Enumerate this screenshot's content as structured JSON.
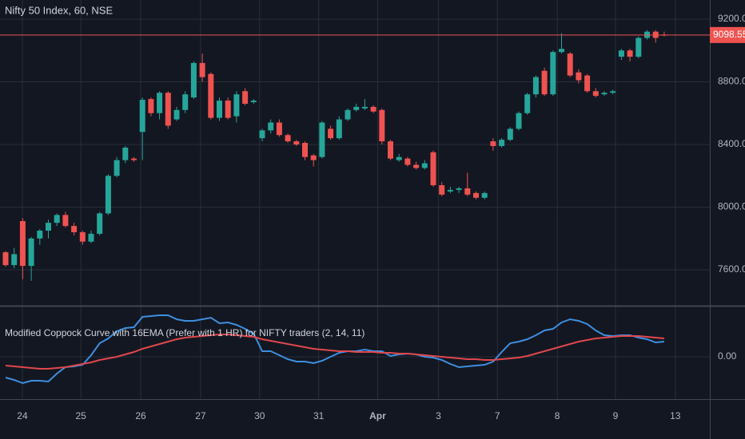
{
  "chart_data": [
    {
      "type": "candlestick",
      "title": "Nifty 50 Index, 60, NSE",
      "up_color": "#26a69a",
      "down_color": "#ef5350",
      "ohlc": [
        [
          7712,
          7720,
          7620,
          7630
        ],
        [
          7630,
          7740,
          7610,
          7700
        ],
        [
          7911,
          7930,
          7540,
          7625
        ],
        [
          7625,
          7810,
          7530,
          7800
        ],
        [
          7800,
          7860,
          7760,
          7850
        ],
        [
          7850,
          7920,
          7800,
          7900
        ],
        [
          7900,
          7960,
          7880,
          7950
        ],
        [
          7950,
          7970,
          7870,
          7880
        ],
        [
          7880,
          7900,
          7820,
          7840
        ],
        [
          7840,
          7850,
          7760,
          7780
        ],
        [
          7780,
          7850,
          7770,
          7830
        ],
        [
          7830,
          7970,
          7820,
          7960
        ],
        [
          7960,
          8210,
          7950,
          8200
        ],
        [
          8200,
          8320,
          8190,
          8300
        ],
        [
          8300,
          8390,
          8280,
          8380
        ],
        [
          8310,
          8320,
          8290,
          8300
        ],
        [
          8480,
          8700,
          8300,
          8685
        ],
        [
          8690,
          8700,
          8580,
          8600
        ],
        [
          8600,
          8740,
          8560,
          8730
        ],
        [
          8730,
          8740,
          8500,
          8520
        ],
        [
          8560,
          8640,
          8550,
          8620
        ],
        [
          8620,
          8740,
          8600,
          8720
        ],
        [
          8700,
          8930,
          8690,
          8920
        ],
        [
          8920,
          8980,
          8800,
          8830
        ],
        [
          8850,
          8860,
          8560,
          8570
        ],
        [
          8570,
          8700,
          8550,
          8680
        ],
        [
          8680,
          8700,
          8560,
          8570
        ],
        [
          8580,
          8740,
          8540,
          8720
        ],
        [
          8740,
          8760,
          8650,
          8660
        ],
        [
          8670,
          8690,
          8660,
          8680
        ],
        [
          8440,
          8500,
          8420,
          8490
        ],
        [
          8490,
          8560,
          8470,
          8540
        ],
        [
          8540,
          8560,
          8450,
          8460
        ],
        [
          8460,
          8470,
          8410,
          8420
        ],
        [
          8420,
          8430,
          8390,
          8400
        ],
        [
          8410,
          8420,
          8300,
          8320
        ],
        [
          8330,
          8340,
          8260,
          8300
        ],
        [
          8320,
          8550,
          8310,
          8540
        ],
        [
          8500,
          8520,
          8430,
          8440
        ],
        [
          8440,
          8580,
          8430,
          8560
        ],
        [
          8560,
          8630,
          8550,
          8620
        ],
        [
          8620,
          8660,
          8610,
          8640
        ],
        [
          8630,
          8690,
          8620,
          8640
        ],
        [
          8640,
          8650,
          8600,
          8610
        ],
        [
          8620,
          8630,
          8400,
          8420
        ],
        [
          8420,
          8430,
          8300,
          8310
        ],
        [
          8300,
          8340,
          8290,
          8320
        ],
        [
          8310,
          8320,
          8260,
          8270
        ],
        [
          8270,
          8290,
          8240,
          8250
        ],
        [
          8250,
          8300,
          8240,
          8280
        ],
        [
          8350,
          8360,
          8130,
          8140
        ],
        [
          8140,
          8160,
          8070,
          8080
        ],
        [
          8100,
          8130,
          8090,
          8110
        ],
        [
          8110,
          8130,
          8090,
          8120
        ],
        [
          8120,
          8220,
          8070,
          8080
        ],
        [
          8090,
          8100,
          8050,
          8060
        ],
        [
          8060,
          8100,
          8050,
          8090
        ],
        [
          8420,
          8440,
          8360,
          8390
        ],
        [
          8390,
          8440,
          8380,
          8430
        ],
        [
          8430,
          8510,
          8420,
          8500
        ],
        [
          8500,
          8610,
          8490,
          8600
        ],
        [
          8600,
          8730,
          8590,
          8720
        ],
        [
          8720,
          8840,
          8700,
          8830
        ],
        [
          8870,
          8890,
          8710,
          8720
        ],
        [
          8720,
          9000,
          8710,
          8990
        ],
        [
          8990,
          9110,
          8980,
          9010
        ],
        [
          8980,
          8990,
          8830,
          8840
        ],
        [
          8860,
          8880,
          8790,
          8810
        ],
        [
          8840,
          8850,
          8730,
          8740
        ],
        [
          8740,
          8760,
          8700,
          8710
        ],
        [
          8720,
          8740,
          8710,
          8730
        ],
        [
          8730,
          8750,
          8720,
          8740
        ],
        [
          8960,
          9010,
          8940,
          9000
        ],
        [
          9000,
          9010,
          8930,
          8960
        ],
        [
          8960,
          9090,
          8950,
          9080
        ],
        [
          9080,
          9130,
          9070,
          9120
        ],
        [
          9120,
          9130,
          9050,
          9080
        ],
        [
          9100,
          9120,
          9090,
          9098.55
        ]
      ],
      "ylim": [
        7371,
        9322
      ],
      "yticks": [
        {
          "value": 7600,
          "label": "7600.00"
        },
        {
          "value": 8000,
          "label": "8000.00"
        },
        {
          "value": 8400,
          "label": "8400.00"
        },
        {
          "value": 8800,
          "label": "8800.00"
        },
        {
          "value": 9200,
          "label": "9200.00"
        }
      ],
      "last_price": 9098.55,
      "last_price_color": "#ef5350",
      "xticks": [
        {
          "value": 1.96,
          "label": "24"
        },
        {
          "value": 8.8,
          "label": "25"
        },
        {
          "value": 15.8,
          "label": "26"
        },
        {
          "value": 22.8,
          "label": "27"
        },
        {
          "value": 29.7,
          "label": "30"
        },
        {
          "value": 36.6,
          "label": "31"
        },
        {
          "value": 43.5,
          "label": "Apr"
        },
        {
          "value": 50.6,
          "label": "3"
        },
        {
          "value": 57.5,
          "label": "7"
        },
        {
          "value": 64.5,
          "label": "8"
        },
        {
          "value": 71.3,
          "label": "9"
        },
        {
          "value": 78.3,
          "label": "13"
        }
      ],
      "grid": true
    },
    {
      "type": "line",
      "title": "Modified Coppock Curve with 16EMA (Prefer with 1 HR) for NIFTY traders (2, 14, 11)",
      "series": [
        {
          "color": "#3d8fe0",
          "values": [
            -26,
            -29,
            -33,
            -30,
            -30,
            -31,
            -21,
            -13,
            -12,
            -10,
            2,
            17,
            23,
            32,
            36,
            37,
            50,
            51,
            52,
            52,
            47,
            45,
            45,
            47,
            49,
            42,
            43,
            40,
            35,
            29,
            7,
            7,
            2,
            -3,
            -6,
            -6,
            -8,
            -5,
            0,
            5,
            7,
            7,
            9,
            7,
            7,
            1,
            3,
            4,
            3,
            0,
            -1,
            -4,
            -9,
            -13,
            -12,
            -11,
            -10,
            -6,
            6,
            17,
            19,
            22,
            27,
            33,
            35,
            43,
            47,
            45,
            41,
            33,
            27,
            26,
            27,
            27,
            24,
            22,
            18,
            19
          ]
        },
        {
          "color": "#e0474c",
          "values": [
            -11,
            -12,
            -13,
            -14,
            -15,
            -15,
            -14,
            -13,
            -11,
            -9,
            -7,
            -4,
            -2,
            0,
            3,
            6,
            10,
            13,
            16,
            19,
            22,
            24,
            25,
            26,
            27,
            28,
            28,
            27,
            26,
            25,
            22,
            20,
            18,
            16,
            14,
            12,
            10,
            9,
            8,
            7,
            7,
            6,
            6,
            6,
            5,
            5,
            4,
            4,
            3,
            2,
            1,
            0,
            -1,
            -2,
            -3,
            -3,
            -4,
            -4,
            -3,
            -2,
            -1,
            1,
            4,
            7,
            10,
            13,
            16,
            19,
            21,
            23,
            24,
            25,
            26,
            26,
            26,
            25,
            24,
            23
          ]
        }
      ],
      "ylim": [
        -53,
        62
      ],
      "yticks": [
        {
          "value": 0,
          "label": "0.00"
        }
      ]
    }
  ]
}
